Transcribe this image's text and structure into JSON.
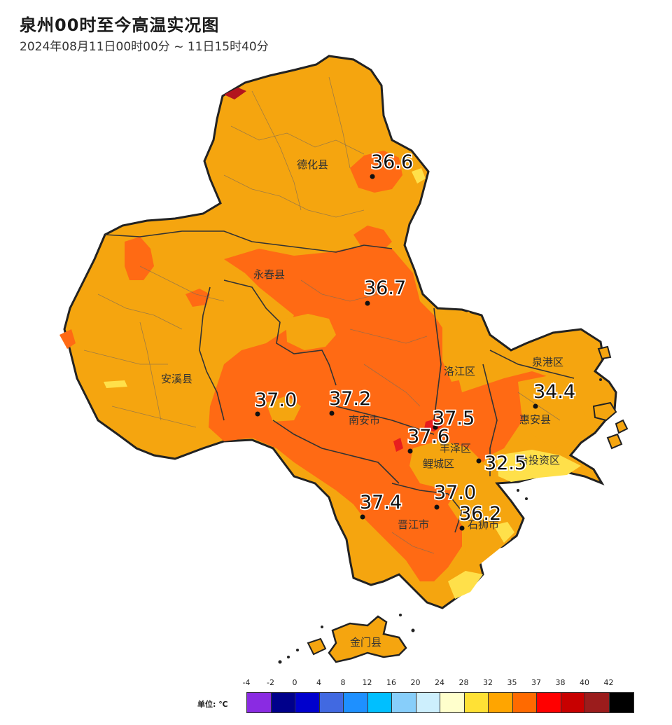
{
  "title": "泉州00时至今高温实况图",
  "subtitle": "2024年08月11日00时00分 ~ 11日15时40分",
  "regions": [
    {
      "id": "dehua",
      "label": "德化县"
    },
    {
      "id": "yongchun",
      "label": "永春县"
    },
    {
      "id": "anxi",
      "label": "安溪县"
    },
    {
      "id": "nanan",
      "label": "南安市"
    },
    {
      "id": "luojiang",
      "label": "洛江区"
    },
    {
      "id": "quangang",
      "label": "泉港区"
    },
    {
      "id": "huian",
      "label": "惠安县"
    },
    {
      "id": "fengze",
      "label": "丰泽区"
    },
    {
      "id": "licheng",
      "label": "鲤城区"
    },
    {
      "id": "taishang",
      "label": "台投资区"
    },
    {
      "id": "jinjiang",
      "label": "晋江市"
    },
    {
      "id": "shishi",
      "label": "石狮市"
    },
    {
      "id": "jinmen",
      "label": "金门县"
    }
  ],
  "stations": [
    {
      "id": "dehua",
      "value": "36.6"
    },
    {
      "id": "yongchun",
      "value": "36.7"
    },
    {
      "id": "anxi",
      "value": "37.0"
    },
    {
      "id": "nanan",
      "value": "37.2"
    },
    {
      "id": "luojiang",
      "value": "37.5"
    },
    {
      "id": "licheng",
      "value": "37.6"
    },
    {
      "id": "huian",
      "value": "34.4"
    },
    {
      "id": "taishang",
      "value": "32.5"
    },
    {
      "id": "jinjiang",
      "value": "37.0"
    },
    {
      "id": "shishi",
      "value": "36.2"
    },
    {
      "id": "nanan_s",
      "value": "37.4"
    }
  ],
  "legend": {
    "unit_label": "单位: ℃",
    "ticks": [
      "-4",
      "-2",
      "0",
      "4",
      "8",
      "12",
      "16",
      "20",
      "24",
      "28",
      "32",
      "35",
      "37",
      "38",
      "40",
      "42"
    ],
    "colors": [
      "#8a2be2",
      "#00008b",
      "#0000cd",
      "#4169e1",
      "#1e90ff",
      "#00bfff",
      "#87cefa",
      "#cdeffd",
      "#ffffcc",
      "#ffe135",
      "#ffa500",
      "#ff6a00",
      "#ff0000",
      "#c80000",
      "#9b1c1c",
      "#000000"
    ]
  },
  "colors": {
    "temp_32_35": "#f5a50f",
    "temp_35_37": "#ff6a14",
    "temp_37_38": "#e81e1e",
    "temp_28_32": "#ffe04a",
    "border": "#222222"
  }
}
